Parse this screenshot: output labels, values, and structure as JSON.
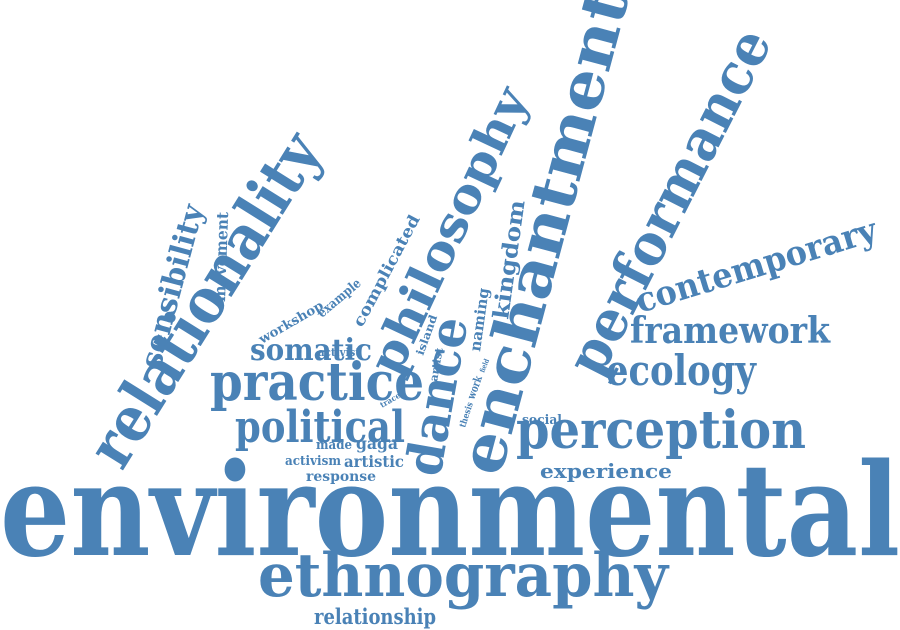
{
  "color": "#4a82b6",
  "words": {
    "environmental": "environmental",
    "ethnography": "ethnography",
    "relationship": "relationship",
    "perception": "perception",
    "experience": "experience",
    "enchantment": "enchantment",
    "performance": "performance",
    "contemporary": "contemporary",
    "framework": "framework",
    "ecology": "ecology",
    "philosophy": "philosophy",
    "dance": "dance",
    "relationality": "relationality",
    "sensibility": "sensibility",
    "practice": "practice",
    "political": "political",
    "somatic": "somatic",
    "movement": "movement",
    "workshop": "workshop",
    "example": "example",
    "complicated": "complicated",
    "activist": "activist",
    "kingdom": "kingdom",
    "naming": "naming",
    "island": "island",
    "artist": "artist",
    "thesis": "thesis",
    "work": "work",
    "field": "field",
    "social": "social",
    "trace": "trace",
    "made": "made",
    "gaga": "gaga",
    "activism": "activism",
    "artistic": "artistic",
    "response": "response"
  }
}
